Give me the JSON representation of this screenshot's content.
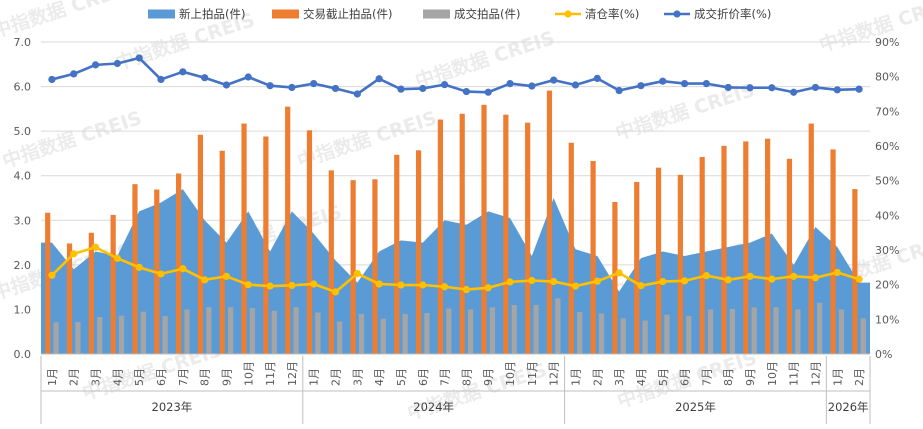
{
  "chart_data": {
    "type": "combo",
    "categories": [
      "1月",
      "2月",
      "3月",
      "4月",
      "5月",
      "6月",
      "7月",
      "8月",
      "9月",
      "10月",
      "11月",
      "12月",
      "1月",
      "2月",
      "3月",
      "4月",
      "5月",
      "6月",
      "7月",
      "8月",
      "9月",
      "10月",
      "11月",
      "12月",
      "1月",
      "2月",
      "3月",
      "4月",
      "5月",
      "6月",
      "7月",
      "8月",
      "9月",
      "10月",
      "11月",
      "12月",
      "1月",
      "2月"
    ],
    "year_groups": [
      {
        "label": "2023年",
        "start": 0,
        "end": 11
      },
      {
        "label": "2024年",
        "start": 12,
        "end": 23
      },
      {
        "label": "2025年",
        "start": 24,
        "end": 35
      },
      {
        "label": "2026年",
        "start": 36,
        "end": 37
      }
    ],
    "y_left": {
      "min": 0,
      "max": 7,
      "step": 1,
      "tick_labels": [
        "0.0",
        "1.0",
        "2.0",
        "3.0",
        "4.0",
        "5.0",
        "6.0",
        "7.0"
      ]
    },
    "y_right": {
      "min": 0,
      "max": 90,
      "step": 10,
      "tick_labels": [
        "0%",
        "10%",
        "20%",
        "30%",
        "40%",
        "50%",
        "60%",
        "70%",
        "80%",
        "90%"
      ]
    },
    "series": [
      {
        "name": "新上拍品(件)",
        "kind": "area",
        "axis": "left",
        "color": "#5b9bd5",
        "values": [
          2.5,
          1.9,
          2.3,
          2.2,
          3.2,
          3.4,
          3.7,
          3.0,
          2.5,
          3.2,
          2.3,
          3.2,
          2.7,
          2.1,
          1.6,
          2.3,
          2.55,
          2.5,
          3.0,
          2.9,
          3.2,
          3.05,
          2.2,
          3.5,
          2.35,
          2.2,
          1.4,
          2.15,
          2.3,
          2.2,
          2.3,
          2.4,
          2.5,
          2.7,
          2.0,
          2.85,
          2.4,
          1.6
        ]
      },
      {
        "name": "交易截止拍品(件)",
        "kind": "bar",
        "axis": "left",
        "color": "#ed7d31",
        "values": [
          3.17,
          2.48,
          2.72,
          3.12,
          3.81,
          3.69,
          4.05,
          4.92,
          4.56,
          5.17,
          4.88,
          5.55,
          5.02,
          4.12,
          3.9,
          3.92,
          4.47,
          4.57,
          5.26,
          5.39,
          5.59,
          5.37,
          5.19,
          5.91,
          4.74,
          4.33,
          3.41,
          3.86,
          4.18,
          4.02,
          4.42,
          4.67,
          4.77,
          4.83,
          4.38,
          5.17,
          4.59,
          3.7
        ]
      },
      {
        "name": "成交拍品(件)",
        "kind": "bar",
        "axis": "left",
        "color": "#a5a5a5",
        "values": [
          0.71,
          0.72,
          0.83,
          0.86,
          0.95,
          0.85,
          1.0,
          1.05,
          1.05,
          1.03,
          0.97,
          1.05,
          0.93,
          0.73,
          0.9,
          0.79,
          0.9,
          0.92,
          1.02,
          1.0,
          1.05,
          1.1,
          1.1,
          1.25,
          0.94,
          0.91,
          0.8,
          0.75,
          0.88,
          0.85,
          1.0,
          1.01,
          1.05,
          1.05,
          1.0,
          1.15,
          1.0,
          0.8
        ]
      },
      {
        "name": "清仓率(%)",
        "kind": "line",
        "axis": "right",
        "color": "#ffc000",
        "values": [
          22.7,
          28.9,
          30.8,
          27.6,
          25.0,
          23.1,
          24.6,
          21.4,
          22.4,
          20.0,
          19.6,
          19.8,
          20.2,
          17.9,
          23.2,
          20.2,
          19.9,
          19.9,
          19.4,
          18.6,
          19.1,
          20.8,
          21.2,
          20.9,
          19.6,
          21.0,
          23.4,
          19.7,
          20.9,
          21.1,
          22.6,
          21.4,
          22.4,
          21.6,
          22.4,
          22.0,
          23.5,
          21.6
        ]
      },
      {
        "name": "成交折价率(%)",
        "kind": "line",
        "axis": "right",
        "color": "#4472c4",
        "values": [
          79.2,
          80.8,
          83.4,
          83.8,
          85.4,
          79.2,
          81.4,
          79.7,
          77.6,
          79.9,
          77.4,
          76.9,
          78.0,
          76.6,
          75.0,
          79.4,
          76.4,
          76.6,
          77.7,
          75.7,
          75.5,
          78.0,
          77.3,
          79.0,
          77.6,
          79.5,
          76.0,
          77.4,
          78.7,
          78.0,
          78.0,
          76.9,
          76.8,
          76.8,
          75.5,
          76.9,
          76.2,
          76.4
        ]
      }
    ],
    "legend_position": "top",
    "grid": "horizontal",
    "watermark_text": "中指数据 CREIS"
  }
}
